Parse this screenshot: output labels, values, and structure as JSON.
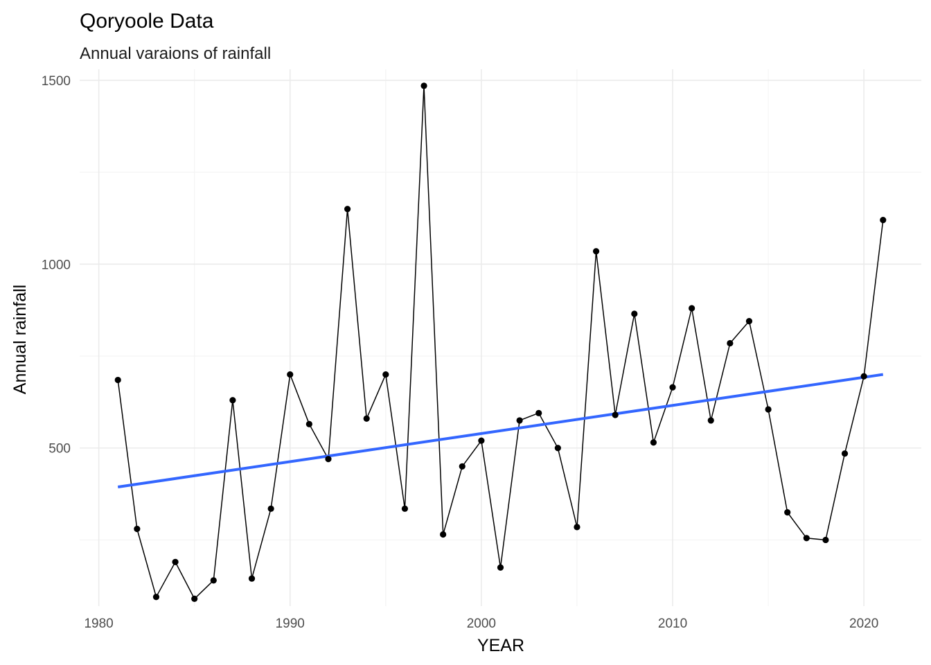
{
  "chart_data": {
    "type": "line",
    "title": "Qoryoole Data",
    "subtitle": "Annual varaions of rainfall",
    "xlabel": "YEAR",
    "ylabel": "Annual rainfall",
    "xlim": [
      1979,
      2023
    ],
    "ylim": [
      70,
      1530
    ],
    "x_ticks": [
      1980,
      1990,
      2000,
      2010,
      2020
    ],
    "y_ticks": [
      500,
      1000,
      1500
    ],
    "x_minor_ticks": [
      1985,
      1995,
      2005,
      2015
    ],
    "y_minor_ticks": [
      250,
      750,
      1250
    ],
    "grid": true,
    "legend": "none",
    "series": [
      {
        "style": "line-with-points",
        "color": "#000000",
        "x": [
          1981,
          1982,
          1983,
          1984,
          1985,
          1986,
          1987,
          1988,
          1989,
          1990,
          1991,
          1992,
          1993,
          1994,
          1995,
          1996,
          1997,
          1998,
          1999,
          2000,
          2001,
          2002,
          2003,
          2004,
          2005,
          2006,
          2007,
          2008,
          2009,
          2010,
          2011,
          2012,
          2013,
          2014,
          2015,
          2016,
          2017,
          2018,
          2019,
          2020,
          2021
        ],
        "y": [
          685,
          280,
          95,
          190,
          90,
          140,
          630,
          145,
          335,
          700,
          565,
          470,
          1150,
          580,
          700,
          335,
          1485,
          265,
          450,
          520,
          175,
          575,
          595,
          500,
          285,
          1035,
          590,
          865,
          515,
          665,
          880,
          575,
          785,
          845,
          605,
          325,
          255,
          250,
          485,
          695,
          1120
        ]
      },
      {
        "style": "trend-line",
        "color": "#3366ff",
        "x": [
          1981,
          2021
        ],
        "y": [
          394,
          700
        ]
      }
    ]
  }
}
